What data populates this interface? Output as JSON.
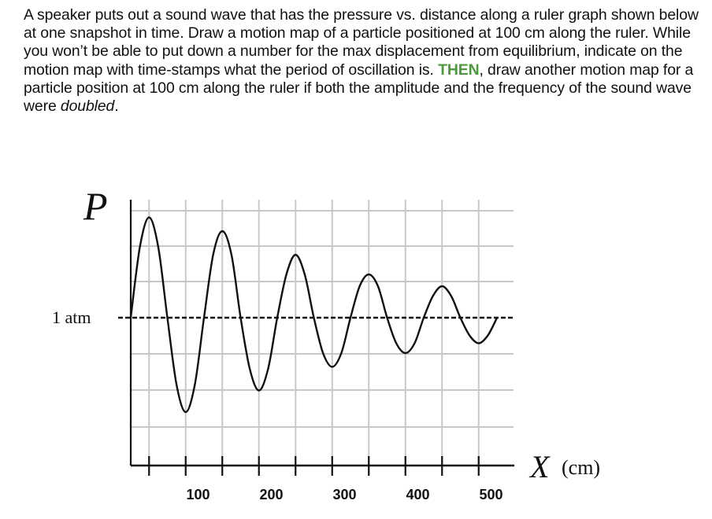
{
  "problem": {
    "text_part1": "A speaker puts out a sound wave that has the pressure vs. distance along a ruler graph shown below at one snapshot in time. Draw a motion map of a particle positioned at 100 cm along the ruler. While you won’t be able to put down a number for the max displacement from equilibrium, indicate on the motion map with time-stamps what the period of oscillation is. ",
    "then_word": "THEN",
    "text_part2": ", draw another motion map for a particle position at 100 cm along the ruler if both the amplitude and the frequency of the sound wave were ",
    "doubled_word": "doubled",
    "text_end": "."
  },
  "chart_data": {
    "type": "line",
    "ylabel": "P",
    "xlabel_symbol": "X",
    "xlabel_unit": "(cm)",
    "reference_label": "1 atm",
    "reference_line": "dashed",
    "grid": true,
    "xlim": [
      0,
      500
    ],
    "x_ticks": [
      100,
      200,
      300,
      400,
      500
    ],
    "x_tick_labels": [
      "100",
      "200",
      "300",
      "400",
      "500"
    ],
    "y_tick_labels": [],
    "wavelength_cm": 100,
    "series": [
      {
        "x": [
          0,
          12.5,
          25,
          37.5,
          50,
          62.5,
          75,
          87.5,
          100,
          112.5,
          125,
          137.5,
          150,
          162.5,
          175,
          187.5,
          200,
          212.5,
          225,
          237.5,
          250,
          262.5,
          275,
          287.5,
          300,
          312.5,
          325,
          337.5,
          350,
          362.5,
          375,
          387.5,
          400,
          412.5,
          425,
          437.5,
          450,
          462.5,
          475,
          487.5,
          500
        ],
        "y": [
          0.0,
          0.18,
          0.255,
          0.18,
          0.0,
          -0.17,
          -0.24,
          -0.17,
          0.0,
          0.16,
          0.22,
          0.16,
          0.0,
          -0.13,
          -0.185,
          -0.13,
          0.0,
          0.11,
          0.16,
          0.11,
          0.0,
          -0.09,
          -0.125,
          -0.09,
          0.0,
          0.08,
          0.11,
          0.08,
          0.0,
          -0.065,
          -0.09,
          -0.065,
          0.0,
          0.055,
          0.08,
          0.055,
          0.0,
          -0.045,
          -0.065,
          -0.045,
          0.0
        ]
      }
    ]
  }
}
